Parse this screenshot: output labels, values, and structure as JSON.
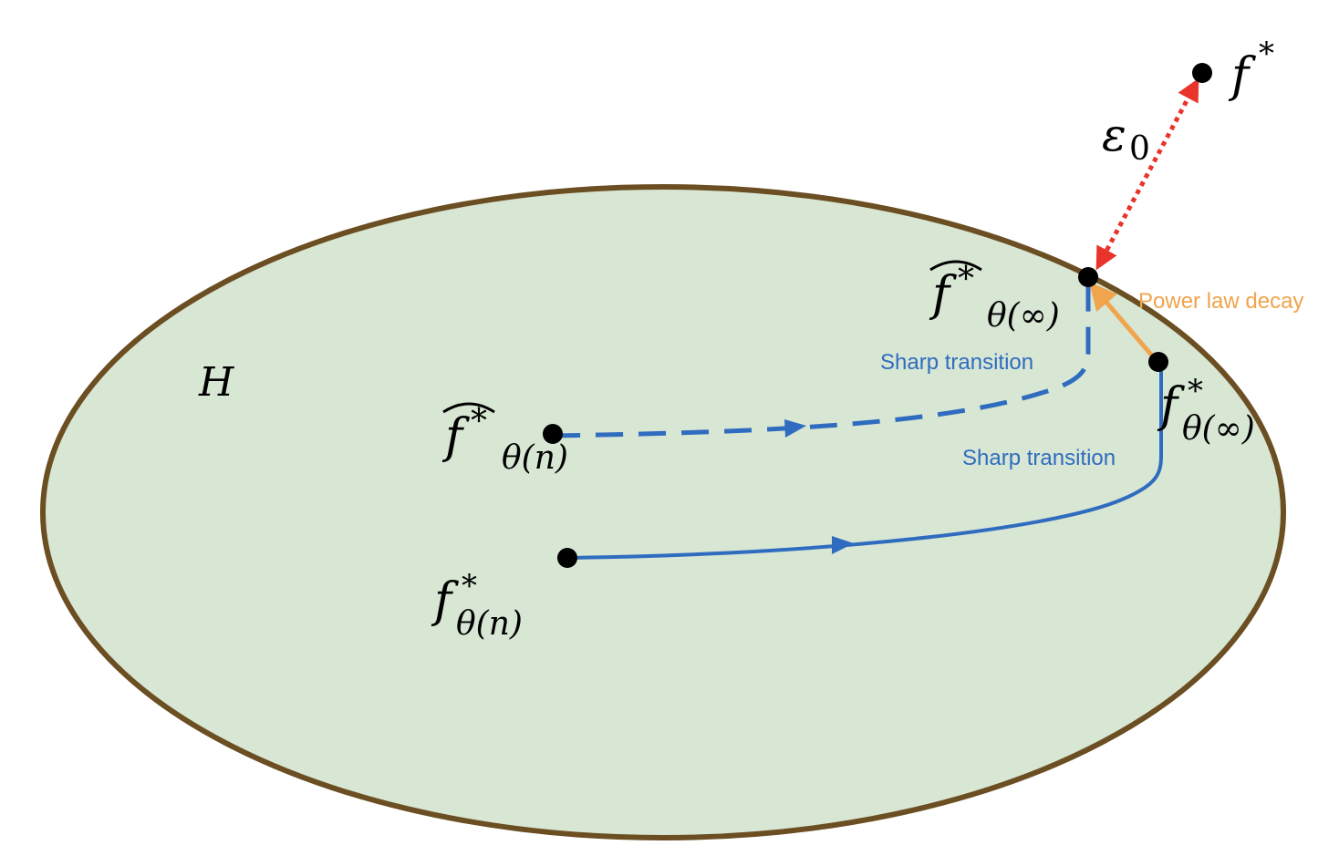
{
  "labels": {
    "set_name": "H",
    "target_fn": "f",
    "target_sup": "*",
    "epsilon": "ε",
    "epsilon_sub": "0",
    "hat_fn": "f",
    "hat_sup": "*",
    "hat_sub_inf": "θ(∞)",
    "hat_sub_n": "θ(n)",
    "fn": "f",
    "fn_sup": "*",
    "fn_sub_inf": "θ(∞)",
    "fn_sub_n": "θ(n)",
    "power_law": "Power law decay",
    "sharp_upper": "Sharp transition",
    "sharp_lower": "Sharp transition"
  },
  "colors": {
    "region_fill": "#d8e6d4",
    "region_border": "#6b4e22",
    "path": "#2f6cbf",
    "power_law": "#f0a44c",
    "epsilon_arrow": "#e8342a",
    "point": "#000000"
  }
}
